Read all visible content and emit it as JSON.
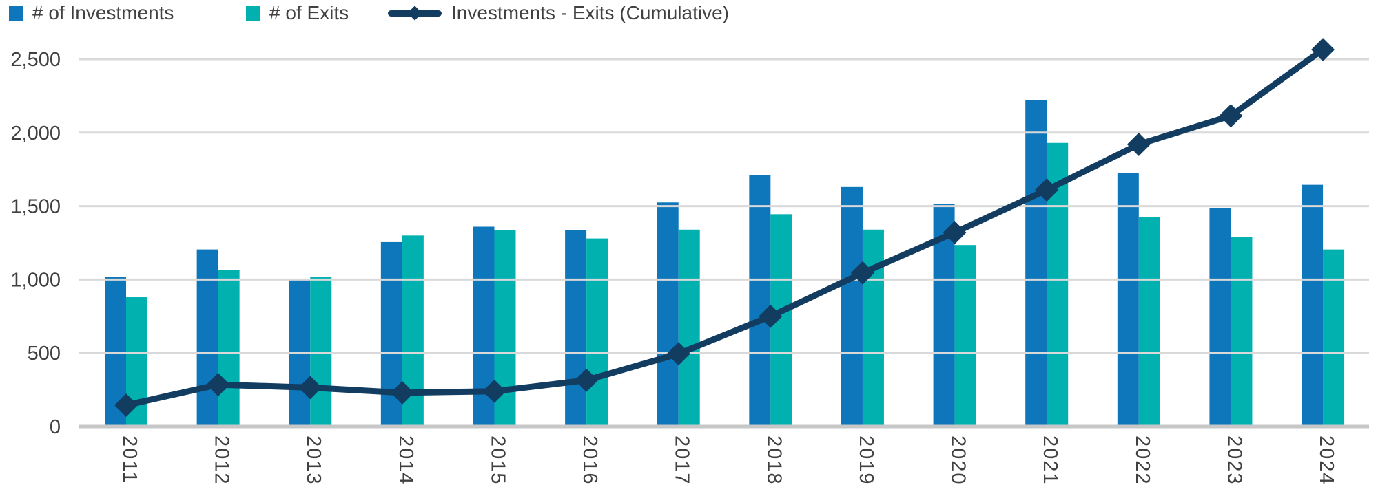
{
  "chart_data": {
    "type": "bar",
    "title": "",
    "xlabel": "",
    "ylabel": "",
    "categories": [
      "2011",
      "2012",
      "2013",
      "2014",
      "2015",
      "2016",
      "2017",
      "2018",
      "2019",
      "2020",
      "2021",
      "2022",
      "2023",
      "2024"
    ],
    "series": [
      {
        "name": "# of Investments",
        "type": "bar",
        "color": "#0E76BB",
        "values": [
          1020,
          1205,
          995,
          1255,
          1360,
          1335,
          1525,
          1710,
          1630,
          1515,
          2220,
          1725,
          1485,
          1645
        ]
      },
      {
        "name": "# of Exits",
        "type": "bar",
        "color": "#00B1B0",
        "values": [
          880,
          1065,
          1020,
          1300,
          1335,
          1280,
          1340,
          1445,
          1340,
          1235,
          1930,
          1425,
          1290,
          1205
        ]
      },
      {
        "name": "Investments - Exits (Cumulative)",
        "type": "line",
        "marker": "diamond",
        "color": "#133C61",
        "values": [
          145,
          285,
          265,
          230,
          240,
          315,
          495,
          750,
          1045,
          1320,
          1610,
          1920,
          2115,
          2565
        ]
      }
    ],
    "ylim": [
      0,
      2500
    ],
    "yticks": [
      0,
      500,
      1000,
      1500,
      2000,
      2500
    ],
    "ytick_labels": [
      "0",
      "500",
      "1,000",
      "1,500",
      "2,000",
      "2,500"
    ],
    "grid": true,
    "grid_color": "#D9D9D9",
    "baseline_color": "#C7C7C7",
    "text_color": "#404040",
    "legend_position": "top-left",
    "x_label_rotation": 90
  }
}
